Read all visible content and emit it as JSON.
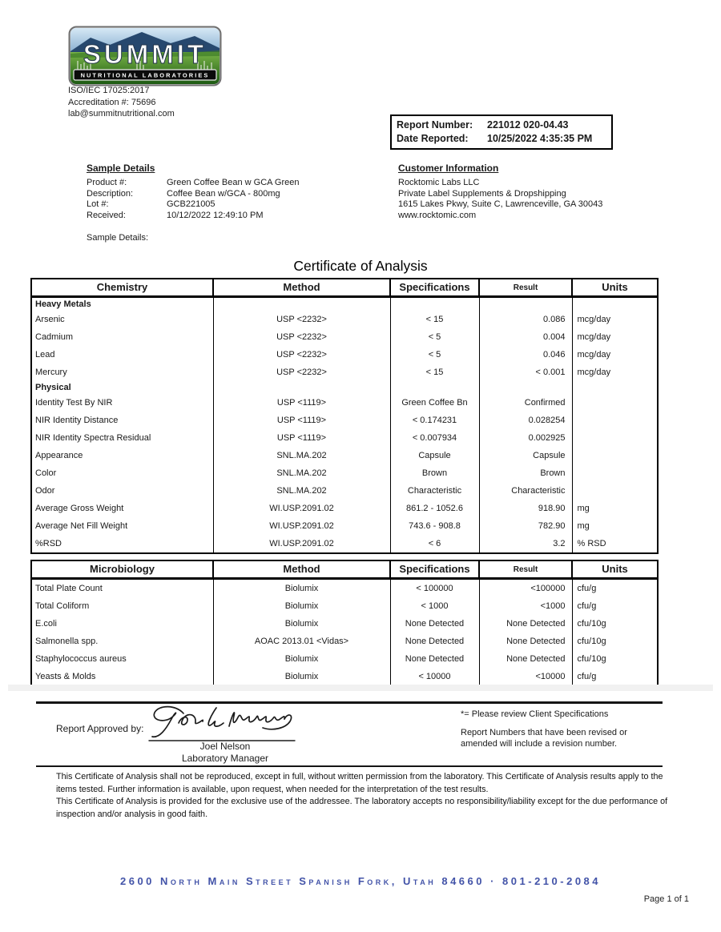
{
  "header": {
    "logo": {
      "brand": "SUMMIT",
      "tagline": "NUTRITIONAL LABORATORIES"
    },
    "iso": "ISO/IEC 17025:2017",
    "accreditation": "Accreditation #: 75696",
    "email": "lab@summitnutritional.com",
    "report_box": {
      "report_number_label": "Report Number:",
      "report_number": "221012 020-04.43",
      "date_reported_label": "Date Reported:",
      "date_reported": "10/25/2022 4:35:35 PM"
    }
  },
  "sample_details": {
    "heading": "Sample Details",
    "fields": [
      {
        "label": "Product #:",
        "value": "Green Coffee Bean w GCA Green"
      },
      {
        "label": "Description:",
        "value": "Coffee Bean w/GCA - 800mg"
      },
      {
        "label": "Lot #:",
        "value": "GCB221005"
      },
      {
        "label": "Received:",
        "value": "10/12/2022 12:49:10 PM"
      }
    ],
    "extra_label": "Sample Details:"
  },
  "customer_information": {
    "heading": "Customer Information",
    "lines": [
      "Rocktomic Labs LLC",
      "Private Label Supplements & Dropshipping",
      "1615 Lakes Pkwy, Suite C, Lawrenceville, GA 30043",
      "www.rocktomic.com"
    ]
  },
  "title": "Certificate of Analysis",
  "chemistry_table": {
    "headers": [
      "Chemistry",
      "Method",
      "Specifications",
      "Result",
      "Units"
    ],
    "rows": [
      {
        "section": "Heavy Metals"
      },
      {
        "analyte": "Arsenic",
        "method": "USP <2232>",
        "spec": "< 15",
        "result": "0.086",
        "units": "mcg/day"
      },
      {
        "analyte": "Cadmium",
        "method": "USP <2232>",
        "spec": "< 5",
        "result": "0.004",
        "units": "mcg/day"
      },
      {
        "analyte": "Lead",
        "method": "USP <2232>",
        "spec": "< 5",
        "result": "0.046",
        "units": "mcg/day"
      },
      {
        "analyte": "Mercury",
        "method": "USP <2232>",
        "spec": "< 15",
        "result": "< 0.001",
        "units": "mcg/day"
      },
      {
        "section": "Physical"
      },
      {
        "analyte": "Identity Test By NIR",
        "method": "USP <1119>",
        "spec": "Green Coffee Bn",
        "result": "Confirmed",
        "units": ""
      },
      {
        "analyte": "NIR Identity Distance",
        "method": "USP <1119>",
        "spec": "< 0.174231",
        "result": "0.028254",
        "units": ""
      },
      {
        "analyte": "NIR Identity Spectra Residual",
        "method": "USP <1119>",
        "spec": "< 0.007934",
        "result": "0.002925",
        "units": ""
      },
      {
        "analyte": "Appearance",
        "method": "SNL.MA.202",
        "spec": "Capsule",
        "result": "Capsule",
        "units": ""
      },
      {
        "analyte": "Color",
        "method": "SNL.MA.202",
        "spec": "Brown",
        "result": "Brown",
        "units": ""
      },
      {
        "analyte": "Odor",
        "method": "SNL.MA.202",
        "spec": "Characteristic",
        "result": "Characteristic",
        "units": ""
      },
      {
        "analyte": "Average Gross Weight",
        "method": "WI.USP.2091.02",
        "spec": "861.2 - 1052.6",
        "result": "918.90",
        "units": "mg"
      },
      {
        "analyte": "Average Net Fill Weight",
        "method": "WI.USP.2091.02",
        "spec": "743.6 - 908.8",
        "result": "782.90",
        "units": "mg"
      },
      {
        "analyte": "%RSD",
        "method": "WI.USP.2091.02",
        "spec": "< 6",
        "result": "3.2",
        "units": "% RSD"
      }
    ]
  },
  "microbiology_table": {
    "headers": [
      "Microbiology",
      "Method",
      "Specifications",
      "Result",
      "Units"
    ],
    "rows": [
      {
        "analyte": "Total Plate Count",
        "method": "Biolumix",
        "spec": "< 100000",
        "result": "<100000",
        "units": "cfu/g"
      },
      {
        "analyte": "Total Coliform",
        "method": "Biolumix",
        "spec": "< 1000",
        "result": "<1000",
        "units": "cfu/g"
      },
      {
        "analyte": "E.coli",
        "method": "Biolumix",
        "spec": "None Detected",
        "result": "None Detected",
        "units": "cfu/10g"
      },
      {
        "analyte": "Salmonella spp.",
        "method": "AOAC 2013.01 <Vidas>",
        "spec": "None Detected",
        "result": "None Detected",
        "units": "cfu/10g"
      },
      {
        "analyte": "Staphylococcus aureus",
        "method": "Biolumix",
        "spec": "None Detected",
        "result": "None Detected",
        "units": "cfu/10g"
      },
      {
        "analyte": "Yeasts & Molds",
        "method": "Biolumix",
        "spec": "< 10000",
        "result": "<10000",
        "units": "cfu/g"
      }
    ]
  },
  "approval": {
    "label": "Report Approved by:",
    "signer_name": "Joel Nelson",
    "signer_title": "Laboratory Manager"
  },
  "notes": {
    "client_spec": "*= Please review Client Specifications",
    "revision": "Report Numbers that have been revised or amended will include a revision number."
  },
  "disclaimer": [
    "This Certificate of Analysis shall not be reproduced, except in full, without written permission from the laboratory. This Certificate of Analysis results apply to the items tested. Further information is available, upon request, when needed for the interpretation of the test results.",
    "This Certificate of Analysis is provided for the exclusive use of the addressee. The laboratory accepts no responsibility/liability except for the due performance of inspection and/or analysis in good faith."
  ],
  "footer": {
    "address": "2600 North Main Street  Spanish Fork, Utah  84660 · 801-210-2084",
    "page_label": "Page 1 of 1"
  }
}
